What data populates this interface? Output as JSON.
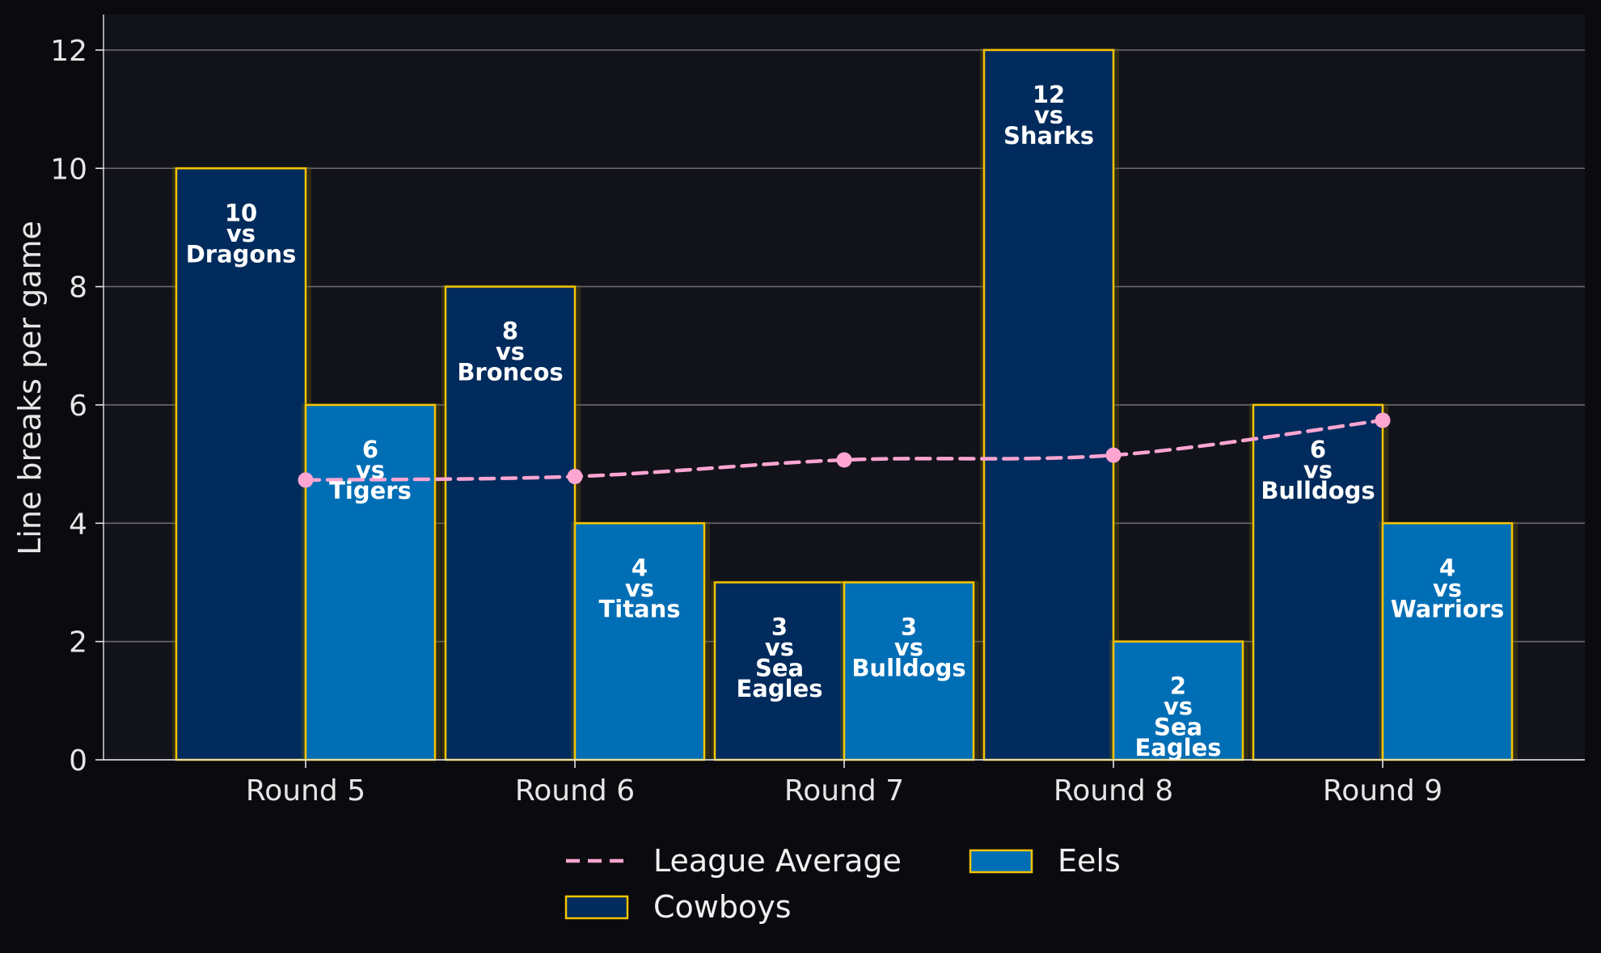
{
  "chart_data": {
    "type": "bar",
    "xlabel": "",
    "ylabel": "Line breaks per game",
    "ylim": [
      0,
      12.6
    ],
    "yticks": [
      0,
      2,
      4,
      6,
      8,
      10,
      12
    ],
    "categories": [
      "Round 5",
      "Round 6",
      "Round 7",
      "Round 8",
      "Round 9"
    ],
    "grid": "horizontal",
    "legend_placement": "bottom-center",
    "series": [
      {
        "name": "Cowboys",
        "type": "bar",
        "color": "#002b5c",
        "edge_color": "#f5c400",
        "values": [
          10,
          8,
          3,
          12,
          6
        ],
        "labels": [
          [
            "10",
            "vs",
            "Dragons"
          ],
          [
            "8",
            "vs",
            "Broncos"
          ],
          [
            "3",
            "vs",
            "Sea",
            "Eagles"
          ],
          [
            "12",
            "vs",
            "Sharks"
          ],
          [
            "6",
            "vs",
            "Bulldogs"
          ]
        ]
      },
      {
        "name": "Eels",
        "type": "bar",
        "color": "#006eb5",
        "edge_color": "#f5c400",
        "values": [
          6,
          4,
          3,
          2,
          4
        ],
        "labels": [
          [
            "6",
            "vs",
            "Tigers"
          ],
          [
            "4",
            "vs",
            "Titans"
          ],
          [
            "3",
            "vs",
            "Bulldogs"
          ],
          [
            "2",
            "vs",
            "Sea",
            "Eagles"
          ],
          [
            "4",
            "vs",
            "Warriors"
          ]
        ]
      },
      {
        "name": "League Average",
        "type": "line",
        "color": "#ffa5d2",
        "style": "dashed",
        "values": [
          4.73,
          4.79,
          5.07,
          5.15,
          5.74
        ]
      }
    ],
    "legend_order": [
      "League Average",
      "Eels",
      "Cowboys"
    ]
  },
  "colors": {
    "background": "#0b0b0f",
    "plot_background": "#12131a",
    "grid": "#6a6a6a",
    "text": "#e6e6e6"
  }
}
